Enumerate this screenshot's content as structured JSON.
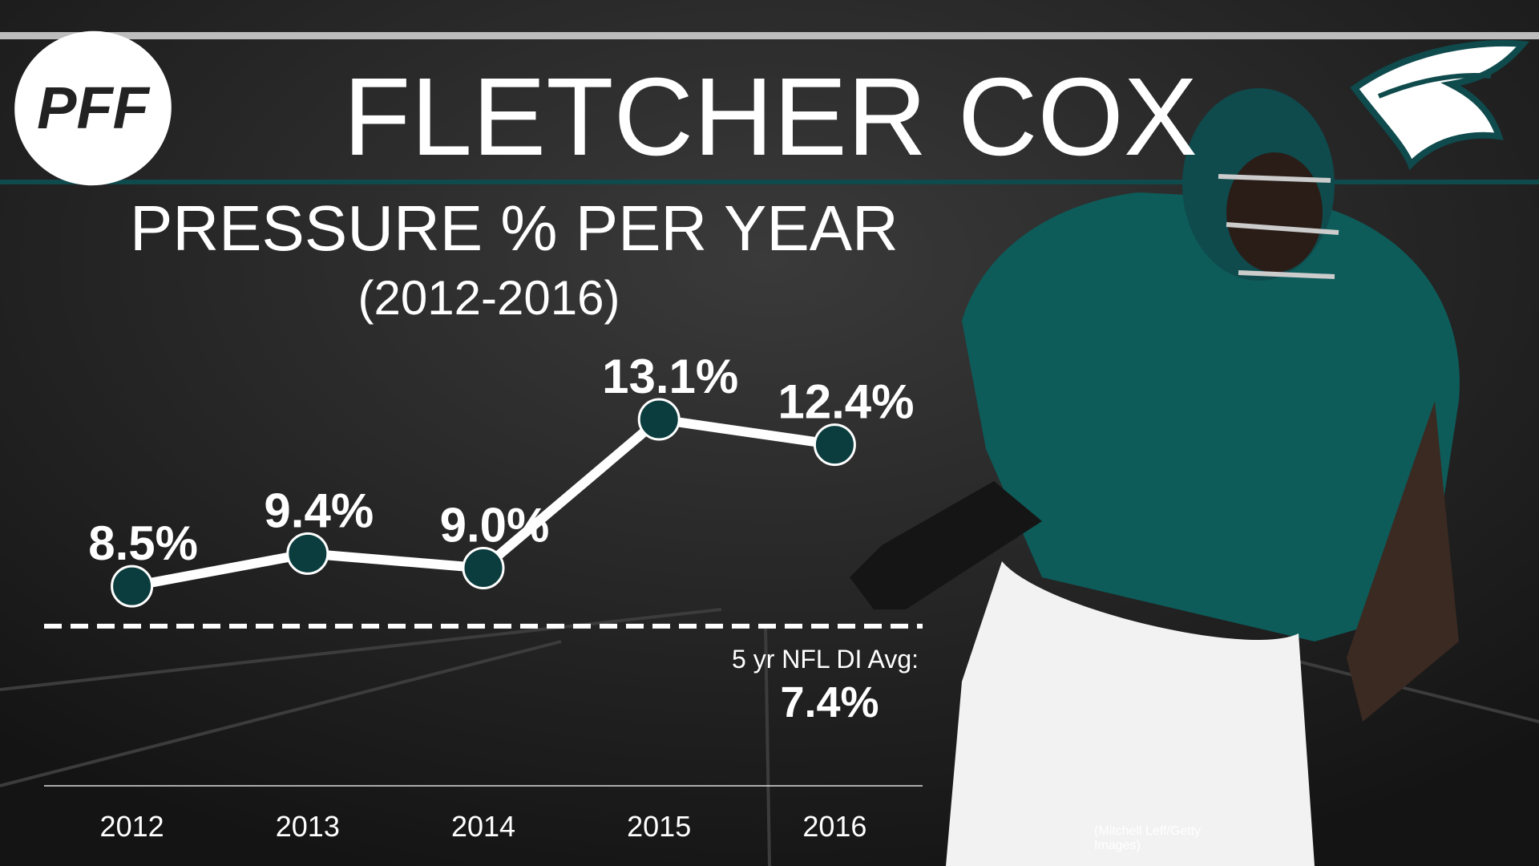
{
  "brand": "PFF",
  "credit": "(Mitchell Leff/Getty Images)",
  "chart_data": {
    "type": "line",
    "title": "FLETCHER COX",
    "subtitle": "PRESSURE % PER YEAR",
    "period": "(2012-2016)",
    "categories": [
      "2012",
      "2013",
      "2014",
      "2015",
      "2016"
    ],
    "values": [
      8.5,
      9.4,
      9.0,
      13.1,
      12.4
    ],
    "value_labels": [
      "8.5%",
      "9.4%",
      "9.0%",
      "13.1%",
      "12.4%"
    ],
    "color": "#ffffff",
    "marker_color": "#0b3d3e",
    "ylim": [
      3,
      15
    ],
    "reference": {
      "label": "5 yr NFL DI Avg:",
      "value": 7.4,
      "value_label": "7.4%"
    }
  }
}
